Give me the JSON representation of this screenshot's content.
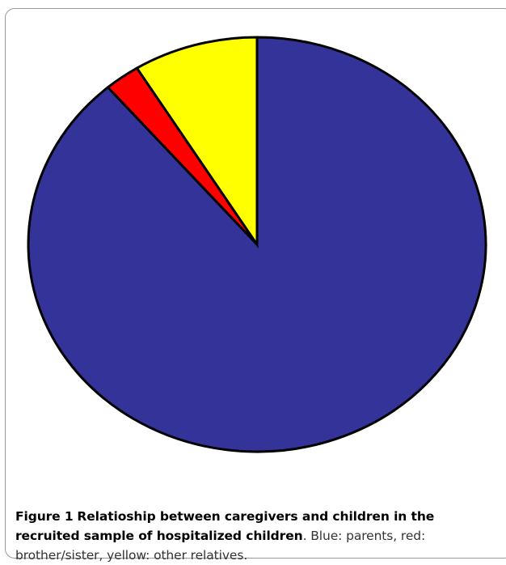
{
  "chart_data": {
    "type": "pie",
    "start": "12 o'clock, clockwise",
    "slices": [
      {
        "label": "parents",
        "value": 88.7,
        "color": "#333399"
      },
      {
        "label": "brother/sister",
        "value": 2.5,
        "color": "#ff0000"
      },
      {
        "label": "other relatives",
        "value": 8.8,
        "color": "#ffff00"
      }
    ],
    "stroke_color": "#000000"
  },
  "caption": {
    "figure_label": "Figure 1",
    "title": "Relatioship between caregivers and children in the recruited sample of hospitalized children",
    "description": ". Blue: parents, red: brother/sister, yellow: other relatives."
  }
}
